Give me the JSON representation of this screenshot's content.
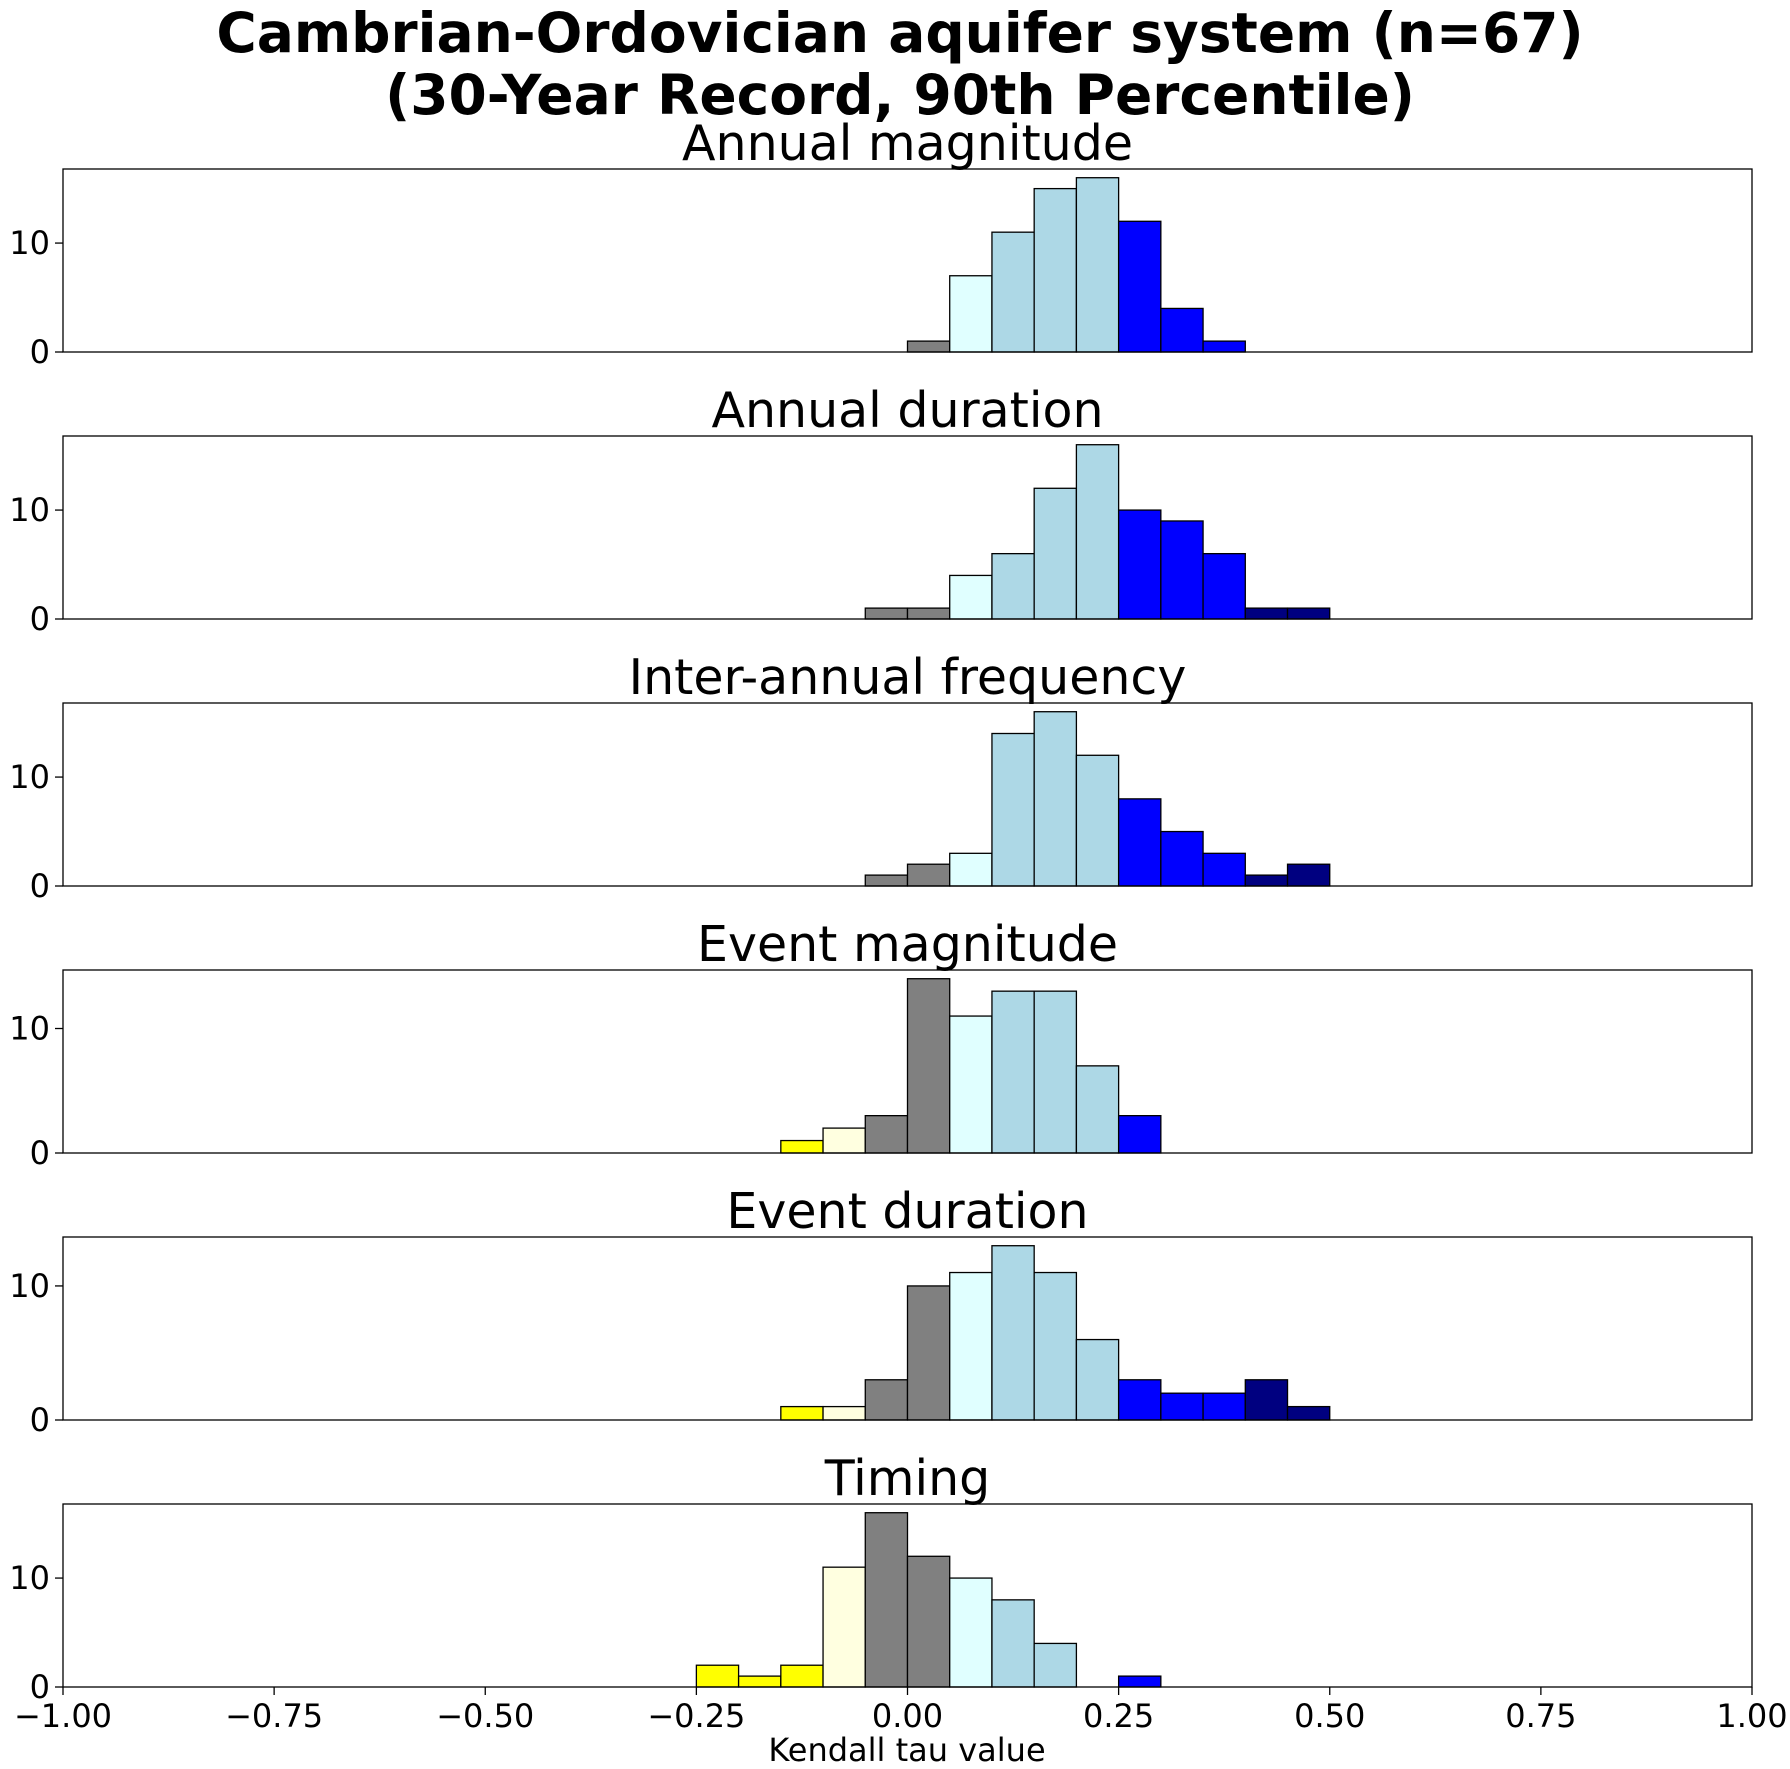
{
  "chart_data": {
    "type": "bar",
    "title_line1": "Cambrian-Ordovician aquifer system (n=67)",
    "title_line2": "(30-Year Record, 90th Percentile)",
    "xlabel": "Kendall tau value",
    "xlim": [
      -1.0,
      1.0
    ],
    "x_ticks": [
      "−1.00",
      "−0.75",
      "−0.50",
      "−0.25",
      "0.00",
      "0.25",
      "0.50",
      "0.75",
      "1.00"
    ],
    "x_tick_values": [
      -1.0,
      -0.75,
      -0.5,
      -0.25,
      0.0,
      0.25,
      0.5,
      0.75,
      1.0
    ],
    "y_ticks": [
      "0",
      "10"
    ],
    "y_tick_values": [
      0,
      10
    ],
    "bin_width": 0.05,
    "colors": {
      "yellow": "#ffff00",
      "lightyellow": "#ffffe0",
      "gray": "#808080",
      "lightcyan": "#e0ffff",
      "lightblue": "#add8e6",
      "blue": "#0000ff",
      "navy": "#000080"
    },
    "panels": [
      {
        "title": "Annual magnitude",
        "ylim": [
          0,
          16.8
        ],
        "bars": [
          {
            "left": 0.0,
            "value": 1,
            "color": "gray"
          },
          {
            "left": 0.05,
            "value": 7,
            "color": "lightcyan"
          },
          {
            "left": 0.1,
            "value": 11,
            "color": "lightblue"
          },
          {
            "left": 0.15,
            "value": 15,
            "color": "lightblue"
          },
          {
            "left": 0.2,
            "value": 16,
            "color": "lightblue"
          },
          {
            "left": 0.25,
            "value": 12,
            "color": "blue"
          },
          {
            "left": 0.3,
            "value": 4,
            "color": "blue"
          },
          {
            "left": 0.35,
            "value": 1,
            "color": "blue"
          }
        ]
      },
      {
        "title": "Annual duration",
        "ylim": [
          0,
          16.8
        ],
        "bars": [
          {
            "left": -0.05,
            "value": 1,
            "color": "gray"
          },
          {
            "left": 0.0,
            "value": 1,
            "color": "gray"
          },
          {
            "left": 0.05,
            "value": 4,
            "color": "lightcyan"
          },
          {
            "left": 0.1,
            "value": 6,
            "color": "lightblue"
          },
          {
            "left": 0.15,
            "value": 12,
            "color": "lightblue"
          },
          {
            "left": 0.2,
            "value": 16,
            "color": "lightblue"
          },
          {
            "left": 0.25,
            "value": 10,
            "color": "blue"
          },
          {
            "left": 0.3,
            "value": 9,
            "color": "blue"
          },
          {
            "left": 0.35,
            "value": 6,
            "color": "blue"
          },
          {
            "left": 0.4,
            "value": 1,
            "color": "navy"
          },
          {
            "left": 0.45,
            "value": 1,
            "color": "navy"
          }
        ]
      },
      {
        "title": "Inter-annual frequency",
        "ylim": [
          0,
          16.8
        ],
        "bars": [
          {
            "left": -0.05,
            "value": 1,
            "color": "gray"
          },
          {
            "left": 0.0,
            "value": 2,
            "color": "gray"
          },
          {
            "left": 0.05,
            "value": 3,
            "color": "lightcyan"
          },
          {
            "left": 0.1,
            "value": 14,
            "color": "lightblue"
          },
          {
            "left": 0.15,
            "value": 16,
            "color": "lightblue"
          },
          {
            "left": 0.2,
            "value": 12,
            "color": "lightblue"
          },
          {
            "left": 0.25,
            "value": 8,
            "color": "blue"
          },
          {
            "left": 0.3,
            "value": 5,
            "color": "blue"
          },
          {
            "left": 0.35,
            "value": 3,
            "color": "blue"
          },
          {
            "left": 0.4,
            "value": 1,
            "color": "navy"
          },
          {
            "left": 0.45,
            "value": 2,
            "color": "navy"
          }
        ]
      },
      {
        "title": "Event magnitude",
        "ylim": [
          0,
          14.7
        ],
        "bars": [
          {
            "left": -0.15,
            "value": 1,
            "color": "yellow"
          },
          {
            "left": -0.1,
            "value": 2,
            "color": "lightyellow"
          },
          {
            "left": -0.05,
            "value": 3,
            "color": "gray"
          },
          {
            "left": 0.0,
            "value": 14,
            "color": "gray"
          },
          {
            "left": 0.05,
            "value": 11,
            "color": "lightcyan"
          },
          {
            "left": 0.1,
            "value": 13,
            "color": "lightblue"
          },
          {
            "left": 0.15,
            "value": 13,
            "color": "lightblue"
          },
          {
            "left": 0.2,
            "value": 7,
            "color": "lightblue"
          },
          {
            "left": 0.25,
            "value": 3,
            "color": "blue"
          }
        ]
      },
      {
        "title": "Event duration",
        "ylim": [
          0,
          13.65
        ],
        "bars": [
          {
            "left": -0.15,
            "value": 1,
            "color": "yellow"
          },
          {
            "left": -0.1,
            "value": 1,
            "color": "lightyellow"
          },
          {
            "left": -0.05,
            "value": 3,
            "color": "gray"
          },
          {
            "left": 0.0,
            "value": 10,
            "color": "gray"
          },
          {
            "left": 0.05,
            "value": 11,
            "color": "lightcyan"
          },
          {
            "left": 0.1,
            "value": 13,
            "color": "lightblue"
          },
          {
            "left": 0.15,
            "value": 11,
            "color": "lightblue"
          },
          {
            "left": 0.2,
            "value": 6,
            "color": "lightblue"
          },
          {
            "left": 0.25,
            "value": 3,
            "color": "blue"
          },
          {
            "left": 0.3,
            "value": 2,
            "color": "blue"
          },
          {
            "left": 0.35,
            "value": 2,
            "color": "blue"
          },
          {
            "left": 0.4,
            "value": 3,
            "color": "navy"
          },
          {
            "left": 0.45,
            "value": 1,
            "color": "navy"
          }
        ]
      },
      {
        "title": "Timing",
        "ylim": [
          0,
          16.8
        ],
        "bars": [
          {
            "left": -0.25,
            "value": 2,
            "color": "yellow"
          },
          {
            "left": -0.2,
            "value": 1,
            "color": "yellow"
          },
          {
            "left": -0.15,
            "value": 2,
            "color": "yellow"
          },
          {
            "left": -0.1,
            "value": 11,
            "color": "lightyellow"
          },
          {
            "left": -0.05,
            "value": 16,
            "color": "gray"
          },
          {
            "left": 0.0,
            "value": 12,
            "color": "gray"
          },
          {
            "left": 0.05,
            "value": 10,
            "color": "lightcyan"
          },
          {
            "left": 0.1,
            "value": 8,
            "color": "lightblue"
          },
          {
            "left": 0.15,
            "value": 4,
            "color": "lightblue"
          },
          {
            "left": 0.25,
            "value": 1,
            "color": "blue"
          }
        ]
      }
    ]
  }
}
